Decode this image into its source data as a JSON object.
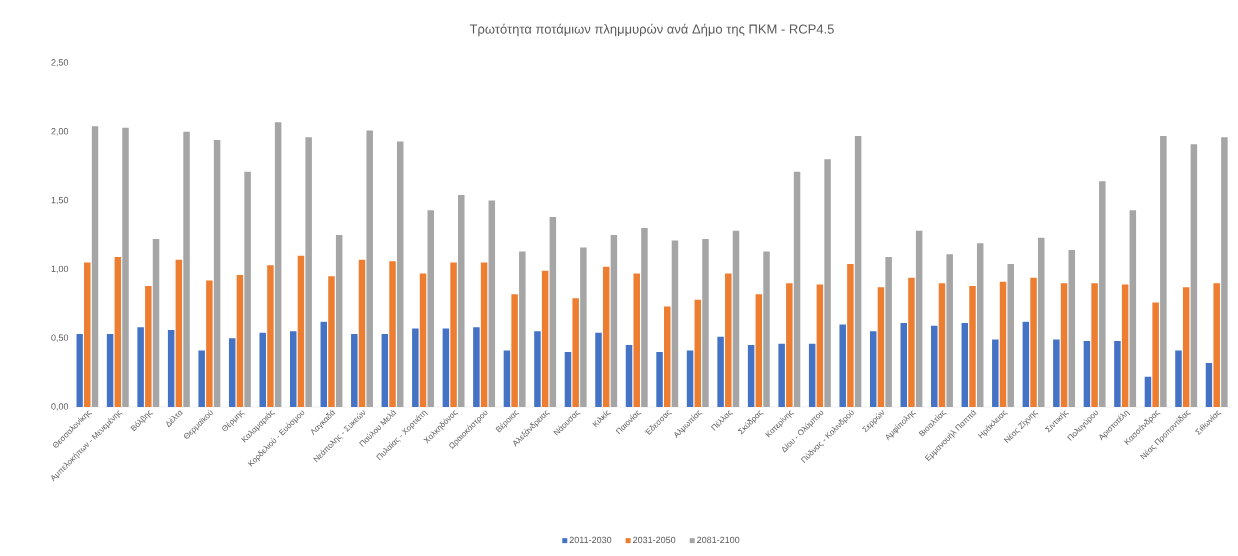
{
  "chart_data": {
    "type": "bar",
    "title": "Τρωτότητα ποτάμιων πλημμυρών ανά Δήμο της ΠΚΜ - RCP4.5",
    "categories": [
      "Θεσσαλονίκης",
      "Αμπελοκήπων - Μενεμένης",
      "Βόλβης",
      "Δέλτα",
      "Θερμαϊκού",
      "Θέρμης",
      "Καλαμαριάς",
      "Κορδελιού - Ευόσμου",
      "Λαγκαδά",
      "Νεάπολης - Συκεών",
      "Παύλου Μελά",
      "Πυλαίας - Χορτιάτη",
      "Χαλκηδόνος",
      "Ωραιοκάστρου",
      "Βέροιας",
      "Αλεξάνδρειας",
      "Νάουσας",
      "Κιλκίς",
      "Παιονίας",
      "Έδεσσας",
      "Αλμωπίας",
      "Πέλλας",
      "Σκύδρας",
      "Κατερίνης",
      "Δίου - Ολύμπου",
      "Πύδνας - Κολινδρού",
      "Σερρών",
      "Αμφίπολης",
      "Βισαλτίας",
      "Εμμανουήλ Παππά",
      "Ηράκλειας",
      "Νέας Ζίχνης",
      "Σιντικής",
      "Πολυγύρου",
      "Αριστοτέλη",
      "Κασσάνδρας",
      "Νέας Προποντίδας",
      "Σιθωνίας"
    ],
    "series": [
      {
        "name": "2011-2030",
        "color": "#4472c4",
        "values": [
          0.53,
          0.53,
          0.58,
          0.56,
          0.41,
          0.5,
          0.54,
          0.55,
          0.62,
          0.53,
          0.53,
          0.57,
          0.57,
          0.58,
          0.41,
          0.55,
          0.4,
          0.54,
          0.45,
          0.4,
          0.41,
          0.51,
          0.45,
          0.46,
          0.46,
          0.6,
          0.55,
          0.61,
          0.59,
          0.61,
          0.49,
          0.62,
          0.49,
          0.48,
          0.48,
          0.22,
          0.41,
          0.32
        ]
      },
      {
        "name": "2031-2050",
        "color": "#ed7d31",
        "values": [
          1.05,
          1.09,
          0.88,
          1.07,
          0.92,
          0.96,
          1.03,
          1.1,
          0.95,
          1.07,
          1.06,
          0.97,
          1.05,
          1.05,
          0.82,
          0.99,
          0.79,
          1.02,
          0.97,
          0.73,
          0.78,
          0.97,
          0.82,
          0.9,
          0.89,
          1.04,
          0.87,
          0.94,
          0.9,
          0.88,
          0.91,
          0.94,
          0.9,
          0.9,
          0.89,
          0.76,
          0.87,
          0.9
        ]
      },
      {
        "name": "2081-2100",
        "color": "#a5a5a5",
        "values": [
          2.04,
          2.03,
          1.22,
          2.0,
          1.94,
          1.71,
          2.07,
          1.96,
          1.25,
          2.01,
          1.93,
          1.43,
          1.54,
          1.5,
          1.13,
          1.38,
          1.16,
          1.25,
          1.3,
          1.21,
          1.22,
          1.28,
          1.13,
          1.71,
          1.8,
          1.97,
          1.09,
          1.28,
          1.11,
          1.19,
          1.04,
          1.23,
          1.14,
          1.64,
          1.43,
          1.97,
          1.91,
          1.96
        ]
      }
    ],
    "ylim": [
      0,
      2.5
    ],
    "yticks": [
      {
        "value": 0,
        "label": "0,00"
      },
      {
        "value": 0.5,
        "label": "0,50"
      },
      {
        "value": 1,
        "label": "1,00"
      },
      {
        "value": 1.5,
        "label": "1,50"
      },
      {
        "value": 2,
        "label": "2,00"
      },
      {
        "value": 2.5,
        "label": "2,50"
      }
    ],
    "grid": false,
    "legend": "bottom"
  }
}
